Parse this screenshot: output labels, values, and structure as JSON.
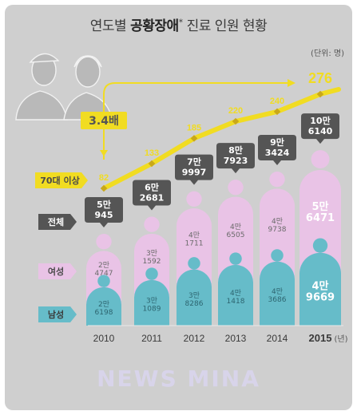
{
  "title_prefix": "연도별",
  "title_bold": "공황장애",
  "title_mark": "*",
  "title_suffix": "진료 인원 현황",
  "unit": "(단위: 명)",
  "watermark": "NEWS MINA",
  "colors": {
    "background": "#cfcfcf",
    "female": "#e9c3e6",
    "male": "#66bcc9",
    "line": "#f1dc22",
    "callout": "#555555"
  },
  "legend": {
    "senior": "70대 이상",
    "total": "전체",
    "female": "여성",
    "male": "남성"
  },
  "multiplier": "3.4배",
  "year_suffix": "(년)",
  "chart_data": {
    "type": "bar",
    "categories": [
      "2010",
      "2011",
      "2012",
      "2013",
      "2014",
      "2015"
    ],
    "series": [
      {
        "name": "남성",
        "values": [
          26198,
          31089,
          38286,
          41418,
          43686,
          49669
        ],
        "labels": [
          "2만\n6198",
          "3만\n1089",
          "3만\n8286",
          "4만\n1418",
          "4만\n3686",
          "4만\n9669"
        ]
      },
      {
        "name": "여성",
        "values": [
          24747,
          31592,
          41711,
          46505,
          49738,
          56471
        ],
        "labels": [
          "2만\n4747",
          "3만\n1592",
          "4만\n1711",
          "4만\n6505",
          "4만\n9738",
          "5만\n6471"
        ]
      },
      {
        "name": "전체",
        "values": [
          50945,
          62681,
          79997,
          87923,
          93424,
          106140
        ],
        "labels": [
          "5만\n945",
          "6만\n2681",
          "7만\n9997",
          "8만\n7923",
          "9만\n3424",
          "10만\n6140"
        ]
      }
    ],
    "line_series": {
      "name": "70대 이상",
      "values": [
        82,
        133,
        185,
        220,
        240,
        276
      ]
    }
  }
}
